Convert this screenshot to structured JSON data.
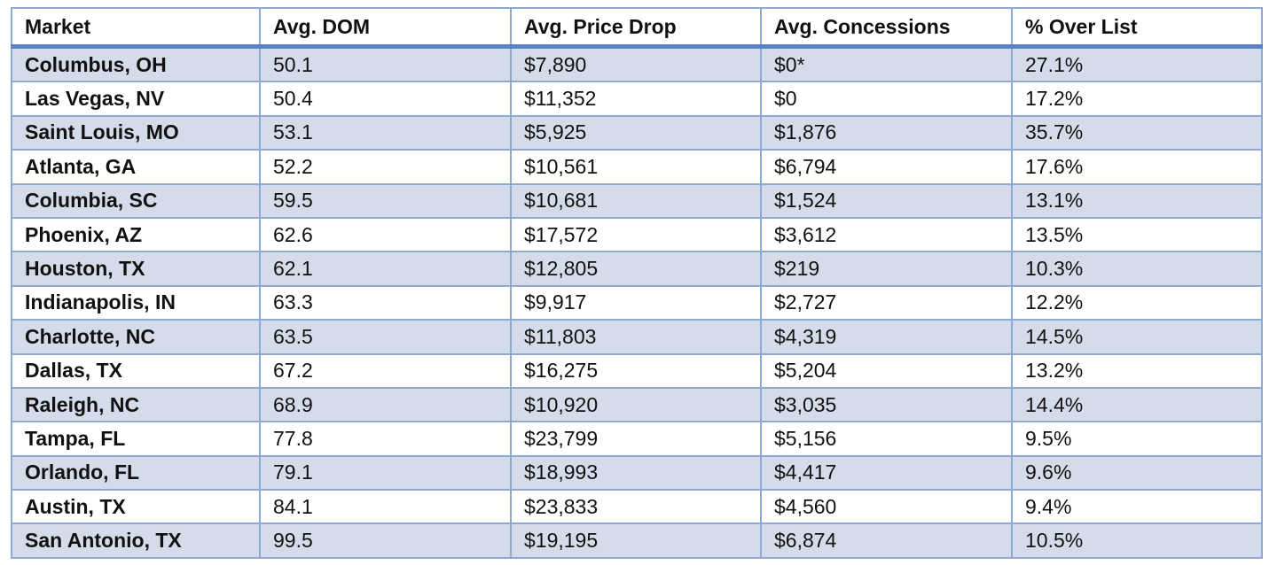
{
  "table": {
    "headers": [
      "Market",
      "Avg. DOM",
      "Avg. Price Drop",
      "Avg. Concessions",
      "% Over List"
    ],
    "rows": [
      [
        "Columbus, OH",
        "50.1",
        "$7,890",
        "$0*",
        "27.1%"
      ],
      [
        "Las Vegas, NV",
        "50.4",
        "$11,352",
        "$0",
        "17.2%"
      ],
      [
        "Saint Louis, MO",
        "53.1",
        "$5,925",
        "$1,876",
        "35.7%"
      ],
      [
        "Atlanta, GA",
        "52.2",
        "$10,561",
        "$6,794",
        "17.6%"
      ],
      [
        "Columbia, SC",
        "59.5",
        "$10,681",
        "$1,524",
        "13.1%"
      ],
      [
        "Phoenix, AZ",
        "62.6",
        "$17,572",
        "$3,612",
        "13.5%"
      ],
      [
        "Houston, TX",
        "62.1",
        "$12,805",
        "$219",
        "10.3%"
      ],
      [
        "Indianapolis, IN",
        "63.3",
        "$9,917",
        "$2,727",
        "12.2%"
      ],
      [
        "Charlotte, NC",
        "63.5",
        "$11,803",
        "$4,319",
        "14.5%"
      ],
      [
        "Dallas, TX",
        "67.2",
        "$16,275",
        "$5,204",
        "13.2%"
      ],
      [
        "Raleigh, NC",
        "68.9",
        "$10,920",
        "$3,035",
        "14.4%"
      ],
      [
        "Tampa, FL",
        "77.8",
        "$23,799",
        "$5,156",
        "9.5%"
      ],
      [
        "Orlando, FL",
        "79.1",
        "$18,993",
        "$4,417",
        "9.6%"
      ],
      [
        "Austin, TX",
        "84.1",
        "$23,833",
        "$4,560",
        "9.4%"
      ],
      [
        "San Antonio, TX",
        "99.5",
        "$19,195",
        "$6,874",
        "10.5%"
      ]
    ]
  }
}
